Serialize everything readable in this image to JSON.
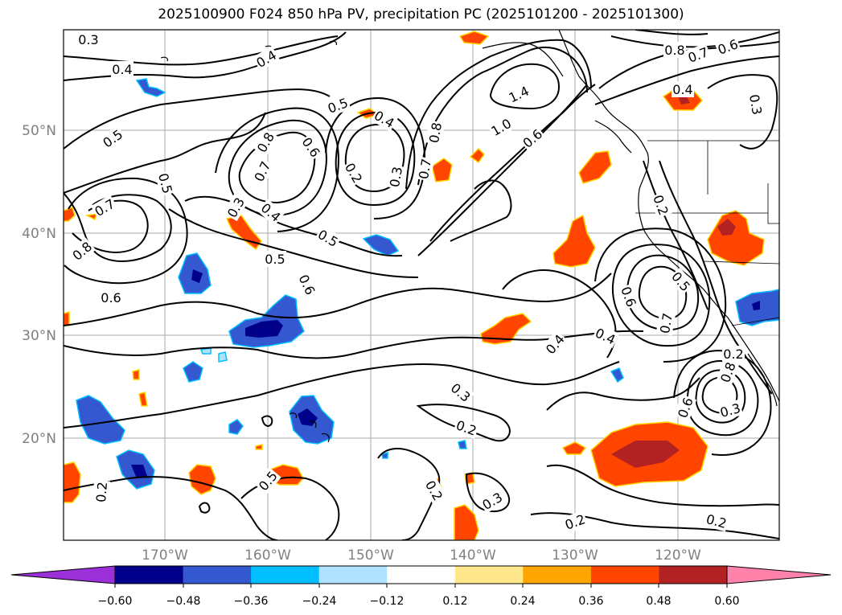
{
  "title": "2025100900 F024 850 hPa PV, precipitation PC (2025101200 - 2025101300)",
  "lat_labels": [
    "50°N",
    "40°N",
    "30°N",
    "20°N"
  ],
  "lon_labels": [
    "170°W",
    "160°W",
    "150°W",
    "140°W",
    "130°W",
    "120°W"
  ],
  "colorbar": {
    "ticks": [
      "−0.60",
      "−0.48",
      "−0.36",
      "−0.24",
      "−0.12",
      "0.12",
      "0.24",
      "0.36",
      "0.48",
      "0.60"
    ],
    "colors": [
      "#9b30d8",
      "#00008b",
      "#3358cf",
      "#00bfff",
      "#b0e2ff",
      "#ffffff",
      "#ffe88c",
      "#ffa500",
      "#ff4500",
      "#b22222",
      "#ff82ab"
    ]
  },
  "contour_labels": [
    {
      "text": "0.3"
    },
    {
      "text": "0.4"
    },
    {
      "text": "0.4"
    },
    {
      "text": "0.5"
    },
    {
      "text": "0.5"
    },
    {
      "text": "0.7"
    },
    {
      "text": "0.8"
    },
    {
      "text": "0.6"
    },
    {
      "text": "0.8"
    },
    {
      "text": "0.7"
    },
    {
      "text": "0.6"
    },
    {
      "text": "0.2"
    },
    {
      "text": "0.3"
    },
    {
      "text": "0.5"
    },
    {
      "text": "0.4"
    },
    {
      "text": "0.8"
    },
    {
      "text": "0.7"
    },
    {
      "text": "1.4"
    },
    {
      "text": "1.0"
    },
    {
      "text": "0.6"
    },
    {
      "text": "0.3"
    },
    {
      "text": "0.4"
    },
    {
      "text": "0.5"
    },
    {
      "text": "0.5"
    },
    {
      "text": "0.6"
    },
    {
      "text": "0.8"
    },
    {
      "text": "0.7"
    },
    {
      "text": "0.6"
    },
    {
      "text": "0.4"
    },
    {
      "text": "0.3"
    },
    {
      "text": "0.2"
    },
    {
      "text": "0.6"
    },
    {
      "text": "0.7"
    },
    {
      "text": "0.5"
    },
    {
      "text": "0.4"
    },
    {
      "text": "0.4"
    },
    {
      "text": "0.3"
    },
    {
      "text": "0.2"
    },
    {
      "text": "0.2"
    },
    {
      "text": "0.3"
    },
    {
      "text": "0.2"
    },
    {
      "text": "0.2"
    },
    {
      "text": "0.2"
    },
    {
      "text": "0.5"
    },
    {
      "text": "0.6"
    },
    {
      "text": "0.8"
    },
    {
      "text": "0.3"
    },
    {
      "text": "0.2"
    }
  ]
}
